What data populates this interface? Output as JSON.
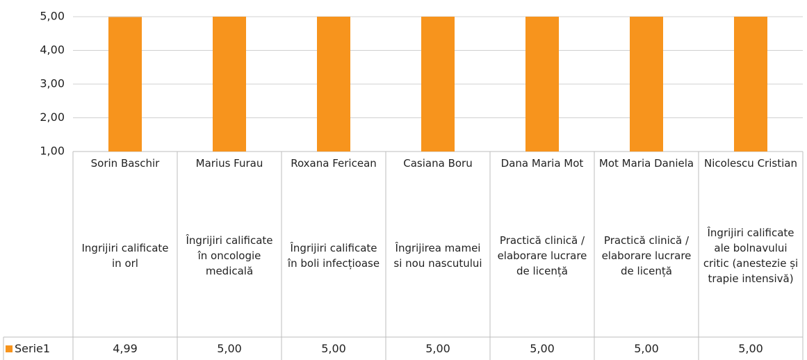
{
  "chart_data": {
    "type": "bar",
    "categories": [
      "Sorin Baschir",
      "Marius Furau",
      "Roxana Fericean",
      "Casiana Boru",
      "Dana Maria Mot",
      "Mot Maria Daniela",
      "Nicolescu Cristian"
    ],
    "subcategories": [
      "Ingrijiri calificate in orl",
      "Îngrijiri calificate în oncologie medicală",
      "Îngrijiri calificate în boli infecțioase",
      "Îngrijirea mamei si nou nascutului",
      "Practică clinică / elaborare lucrare de licență",
      "Practică clinică / elaborare lucrare de licență",
      "Îngrijiri calificate ale bolnavului critic (anestezie și trapie intensivă)"
    ],
    "series": [
      {
        "name": "Serie1",
        "color": "#f7941d",
        "values": [
          4.99,
          5,
          5,
          5,
          5,
          5,
          5
        ],
        "value_labels": [
          "4,99",
          "5,00",
          "5,00",
          "5,00",
          "5,00",
          "5,00",
          "5,00"
        ]
      }
    ],
    "ylim": [
      1,
      5
    ],
    "yticks": [
      {
        "value": 1,
        "label": "1,00"
      },
      {
        "value": 2,
        "label": "2,00"
      },
      {
        "value": 3,
        "label": "3,00"
      },
      {
        "value": 4,
        "label": "4,00"
      },
      {
        "value": 5,
        "label": "5,00"
      }
    ],
    "grid": true
  }
}
